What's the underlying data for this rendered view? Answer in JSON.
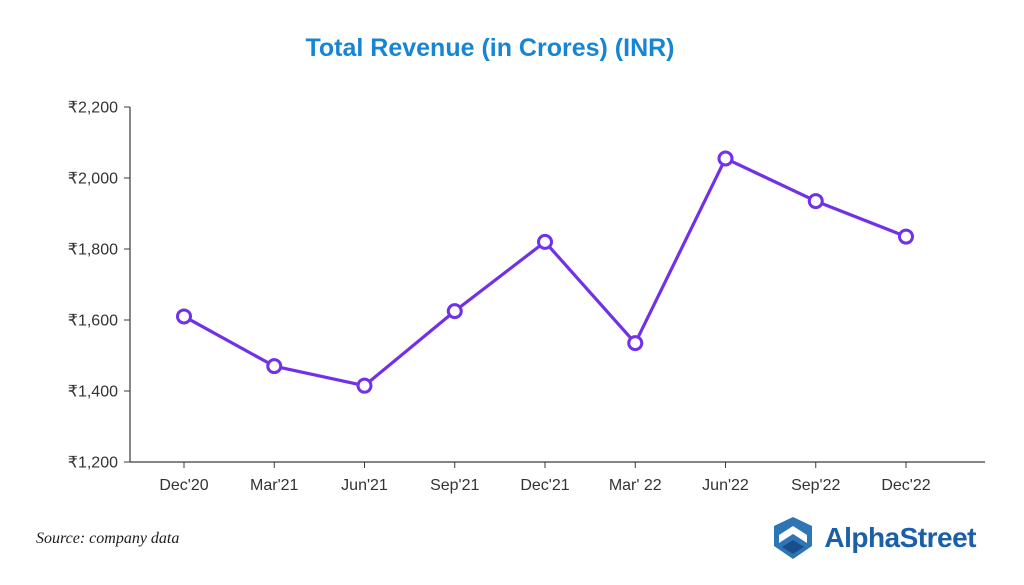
{
  "title": "Total Revenue (in Crores) (INR)",
  "source_note": "Source: company data",
  "brand": {
    "name": "AlphaStreet"
  },
  "chart_data": {
    "type": "line",
    "title": "Total Revenue (in Crores) (INR)",
    "categories": [
      "Dec'20",
      "Mar'21",
      "Jun'21",
      "Sep'21",
      "Dec'21",
      "Mar' 22",
      "Jun'22",
      "Sep'22",
      "Dec'22"
    ],
    "values": [
      1610,
      1470,
      1415,
      1625,
      1820,
      1535,
      2055,
      1935,
      1835
    ],
    "xlabel": "",
    "ylabel": "",
    "ylim": [
      1200,
      2200
    ],
    "ytick_step": 200,
    "ytick_prefix": "₹",
    "grid": false,
    "legend": "none",
    "line_color": "#7031e8",
    "marker_fill": "#ffffff",
    "axis_color": "#3a3a3a",
    "label_color": "#333333"
  },
  "colors": {
    "title": "#1585d4",
    "brand_text": "#1a5fa8",
    "brand_icon_main": "#2e75b6",
    "brand_icon_dark": "#1a4e8a"
  }
}
